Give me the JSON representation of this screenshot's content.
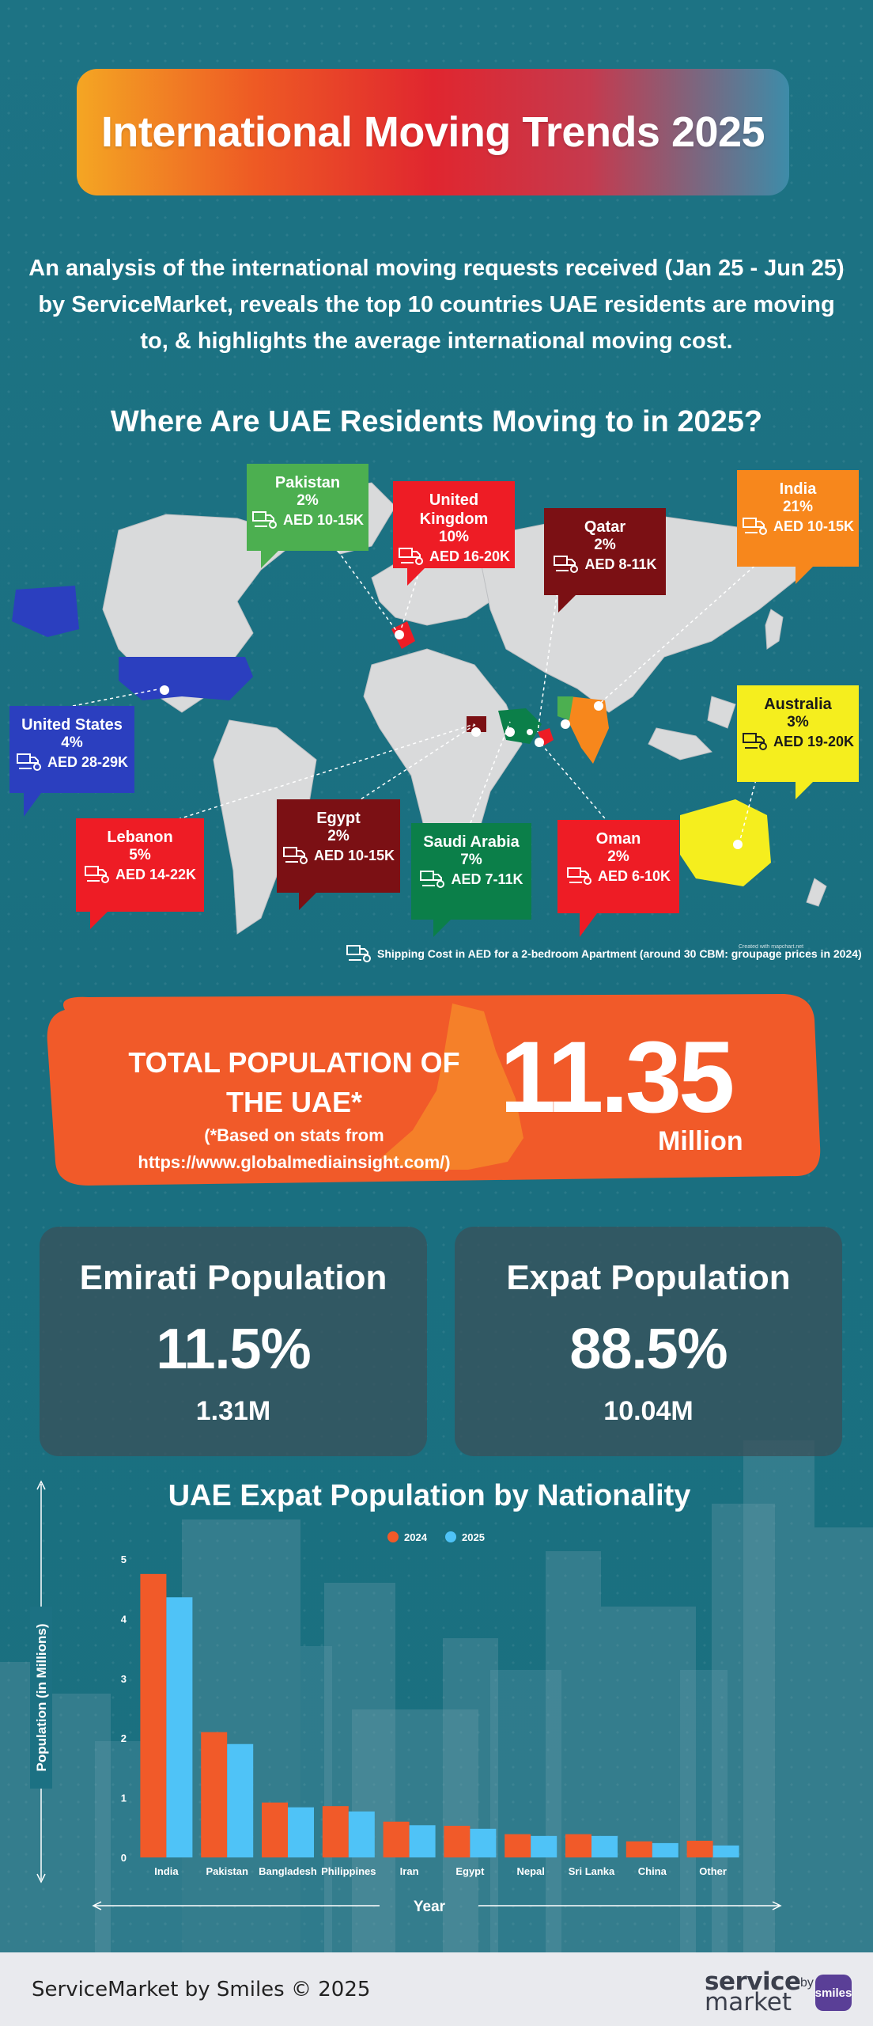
{
  "title": "International Moving Trends 2025",
  "intro": "An analysis of the international moving requests received (Jan 25 - Jun 25) by ServiceMarket, reveals the top 10 countries UAE residents are moving to, & highlights the average international moving cost.",
  "map_section": {
    "title": "Where Are UAE Residents Moving to in 2025?",
    "callouts": [
      {
        "country": "Pakistan",
        "percent": "2%",
        "cost": "AED 10-15K",
        "color": "#4caf50"
      },
      {
        "country": "United Kingdom",
        "percent": "10%",
        "cost": "AED 16-20K",
        "color": "#ee1c25"
      },
      {
        "country": "Qatar",
        "percent": "2%",
        "cost": "AED 8-11K",
        "color": "#7b1014"
      },
      {
        "country": "India",
        "percent": "21%",
        "cost": "AED 10-15K",
        "color": "#f7871c"
      },
      {
        "country": "United States",
        "percent": "4%",
        "cost": "AED 28-29K",
        "color": "#2b3fbf"
      },
      {
        "country": "Australia",
        "percent": "3%",
        "cost": "AED 19-20K",
        "color": "#f5ee1e"
      },
      {
        "country": "Lebanon",
        "percent": "5%",
        "cost": "AED 14-22K",
        "color": "#ee1c25"
      },
      {
        "country": "Egypt",
        "percent": "2%",
        "cost": "AED 10-15K",
        "color": "#7b1014"
      },
      {
        "country": "Saudi Arabia",
        "percent": "7%",
        "cost": "AED 7-11K",
        "color": "#0b7f49"
      },
      {
        "country": "Oman",
        "percent": "2%",
        "cost": "AED 6-10K",
        "color": "#ee1c25"
      }
    ],
    "shipping_note": "Shipping Cost in AED for a 2-bedroom Apartment (around 30 CBM: groupage prices in 2024)",
    "credit": "Created with mapchart.net",
    "icon": "truck-location-icon"
  },
  "total_population": {
    "label": "TOTAL POPULATION OF THE UAE*",
    "note": "(*Based on stats from https://www.globalmediainsight.com/)",
    "value": "11.35",
    "unit": "Million"
  },
  "emirati": {
    "title": "Emirati Population",
    "percent": "11.5%",
    "value": "1.31M"
  },
  "expat": {
    "title": "Expat Population",
    "percent": "88.5%",
    "value": "10.04M"
  },
  "chart_data": {
    "type": "bar",
    "title": "UAE Expat Population by Nationality",
    "xlabel": "Year",
    "ylabel": "Population (in Millions)",
    "ylim": [
      0,
      5
    ],
    "yticks": [
      0,
      1,
      2,
      3,
      4,
      5
    ],
    "categories": [
      "India",
      "Pakistan",
      "Bangladesh",
      "Philippines",
      "Iran",
      "Egypt",
      "Nepal",
      "Sri Lanka",
      "China",
      "Other"
    ],
    "series": [
      {
        "name": "2024",
        "color": "#f15a29",
        "values": [
          4.75,
          2.1,
          0.92,
          0.86,
          0.6,
          0.53,
          0.39,
          0.39,
          0.27,
          0.28
        ]
      },
      {
        "name": "2025",
        "color": "#4fc3f7",
        "values": [
          4.36,
          1.9,
          0.84,
          0.77,
          0.54,
          0.48,
          0.36,
          0.36,
          0.24,
          0.2
        ]
      }
    ],
    "legend": "top"
  },
  "footer": {
    "copyright": "ServiceMarket by Smiles © 2025",
    "logo_service": "service",
    "logo_market": "market",
    "logo_by": "by",
    "logo_smiles": "smiles"
  },
  "colors": {
    "background": "#1c7183",
    "orange_banner": "#f15a29",
    "card": "#3a505a"
  }
}
